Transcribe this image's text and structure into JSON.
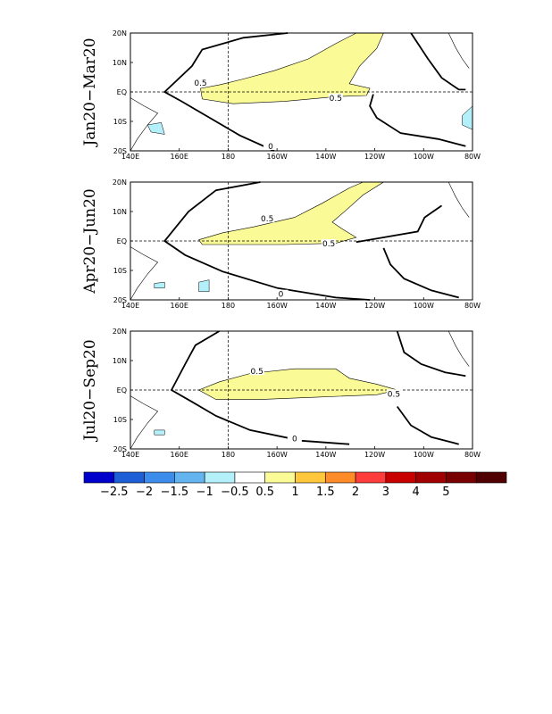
{
  "chart_data": [
    {
      "type": "contour",
      "row_label": "Jan20−Mar20",
      "x_ticks": [
        "140E",
        "160E",
        "180",
        "160W",
        "140W",
        "120W",
        "100W",
        "80W"
      ],
      "y_ticks": [
        "20N",
        "10N",
        "EQ",
        "10S",
        "20S"
      ],
      "contour_labels": [
        "0.5",
        "0.5",
        "0"
      ]
    },
    {
      "type": "contour",
      "row_label": "Apr20−Jun20",
      "x_ticks": [
        "140E",
        "160E",
        "180",
        "160W",
        "140W",
        "120W",
        "100W",
        "80W"
      ],
      "y_ticks": [
        "20N",
        "10N",
        "EQ",
        "10S",
        "20S"
      ],
      "contour_labels": [
        "0.5",
        "0.5",
        "0"
      ]
    },
    {
      "type": "contour",
      "row_label": "Jul20−Sep20",
      "x_ticks": [
        "140E",
        "160E",
        "180",
        "160W",
        "140W",
        "120W",
        "100W",
        "80W"
      ],
      "y_ticks": [
        "20N",
        "10N",
        "EQ",
        "10S",
        "20S"
      ],
      "contour_labels": [
        "0.5",
        "0.5",
        "0"
      ]
    }
  ],
  "colorbar": {
    "colors": [
      "#0000cd",
      "#1e5fd8",
      "#3c8cec",
      "#64b4f0",
      "#b4f0fa",
      "#ffffff",
      "#fafa96",
      "#ffc83c",
      "#ff8c28",
      "#ff3c3c",
      "#c80000",
      "#a00000",
      "#780000",
      "#500000"
    ],
    "labels": [
      "−2.5",
      "−2",
      "−1.5",
      "−1",
      "−0.5",
      "0.5",
      "1",
      "1.5",
      "2",
      "3",
      "4",
      "5"
    ]
  }
}
